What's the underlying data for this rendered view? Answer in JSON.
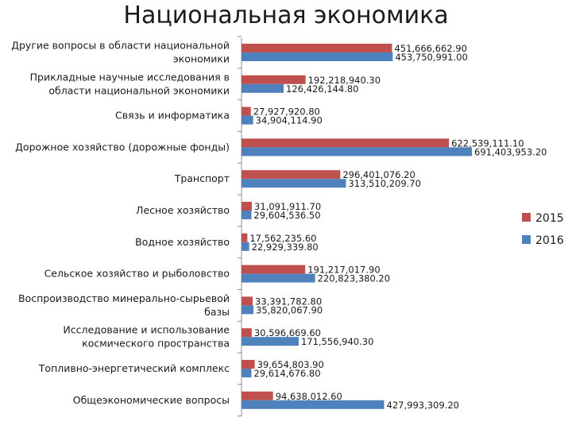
{
  "chart_data": {
    "type": "bar",
    "orientation": "horizontal",
    "title": "Национальная экономика",
    "categories": [
      [
        "Другие вопросы в области национальной",
        "экономики"
      ],
      [
        "Прикладные научные исследования в",
        "области национальной экономики"
      ],
      [
        "Связь и информатика"
      ],
      [
        "Дорожное хозяйство (дорожные фонды)"
      ],
      [
        "Транспорт"
      ],
      [
        "Лесное хозяйство"
      ],
      [
        "Водное хозяйство"
      ],
      [
        "Сельское хозяйство и рыболовство"
      ],
      [
        "Воспроизводство минерально-сырьевой",
        "базы"
      ],
      [
        "Исследование и использование",
        "космического пространства"
      ],
      [
        "Топливно-энергетический комплекс"
      ],
      [
        "Общеэкономические вопросы"
      ]
    ],
    "series": [
      {
        "name": "2015",
        "color": "#C0504D",
        "values": [
          451666662.9,
          192218940.3,
          27927920.8,
          622539111.1,
          296401076.2,
          31091911.7,
          17562235.6,
          191217017.9,
          33391782.8,
          30596669.6,
          39654803.9,
          94638012.6
        ],
        "labels": [
          "451,666,662.90",
          "192,218,940.30",
          "27,927,920.80",
          "622,539,111.10",
          "296,401,076.20",
          "31,091,911.70",
          "17,562,235.60",
          "191,217,017.90",
          "33,391,782.80",
          "30,596,669.60",
          "39,654,803.90",
          "94,638,012.60"
        ]
      },
      {
        "name": "2016",
        "color": "#4F81BD",
        "values": [
          453750991.0,
          126426144.8,
          34904114.9,
          691403953.2,
          313510209.7,
          29604536.5,
          22929339.8,
          220823380.2,
          35820067.9,
          171556940.3,
          29614676.8,
          427993309.2
        ],
        "labels": [
          "453,750,991.00",
          "126,426,144.80",
          "34,904,114.90",
          "691,403,953.20",
          "313,510,209.70",
          "29,604,536.50",
          "22,929,339.80",
          "220,823,380.20",
          "35,820,067.90",
          "171,556,940.30",
          "29,614,676.80",
          "427,993,309.20"
        ]
      }
    ],
    "legend_position": "right",
    "grid": false
  }
}
